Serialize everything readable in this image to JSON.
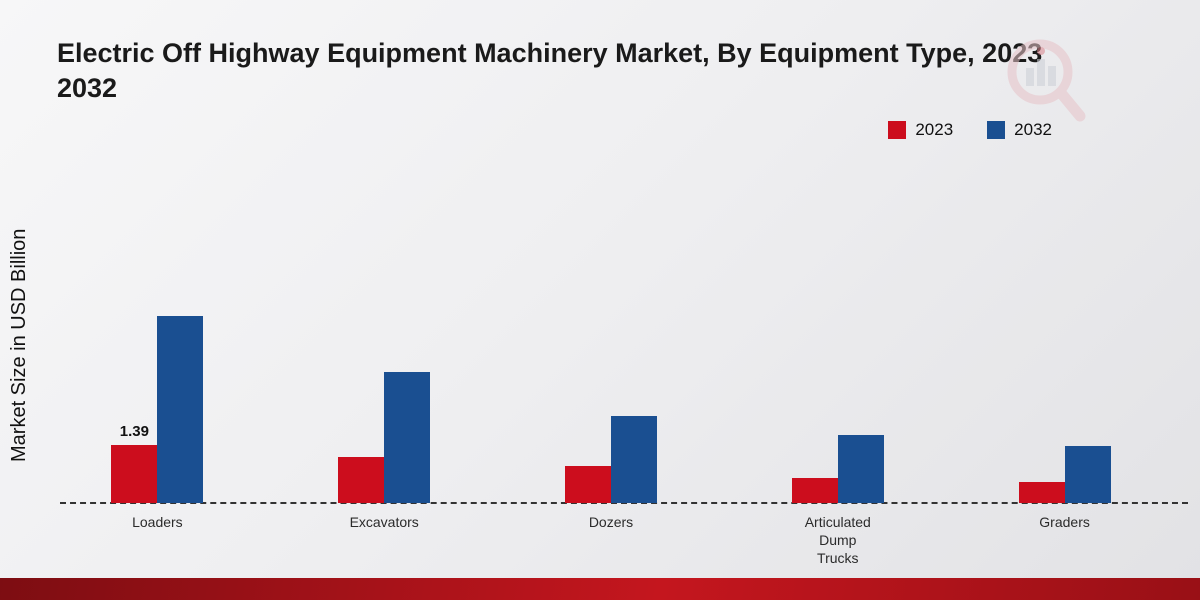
{
  "title": "Electric Off Highway Equipment Machinery Market, By Equipment Type, 2023 2032",
  "ylabel": "Market Size in USD Billion",
  "colors": {
    "series_2023": "#cc0d1d",
    "series_2032": "#1a4f91",
    "footer_band": "#c4161e",
    "axis_dash": "#333333"
  },
  "legend": [
    {
      "label": "2023",
      "color": "#cc0d1d"
    },
    {
      "label": "2032",
      "color": "#1a4f91"
    }
  ],
  "chart_data": {
    "type": "bar",
    "title": "Electric Off Highway Equipment Machinery Market, By Equipment Type, 2023 2032",
    "xlabel": "",
    "ylabel": "Market Size in USD Billion",
    "categories": [
      "Loaders",
      "Excavators",
      "Dozers",
      "Articulated Dump Trucks",
      "Graders"
    ],
    "series": [
      {
        "name": "2023",
        "color": "#cc0d1d",
        "values": [
          1.39,
          1.1,
          0.9,
          0.6,
          0.5
        ]
      },
      {
        "name": "2032",
        "color": "#1a4f91",
        "values": [
          4.5,
          3.15,
          2.1,
          1.65,
          1.37
        ]
      }
    ],
    "ylim": [
      0,
      4.7
    ],
    "grid": false,
    "legend_position": "top-right",
    "bar_labels": [
      {
        "series": "2023",
        "category": "Loaders",
        "text": "1.39"
      }
    ]
  }
}
